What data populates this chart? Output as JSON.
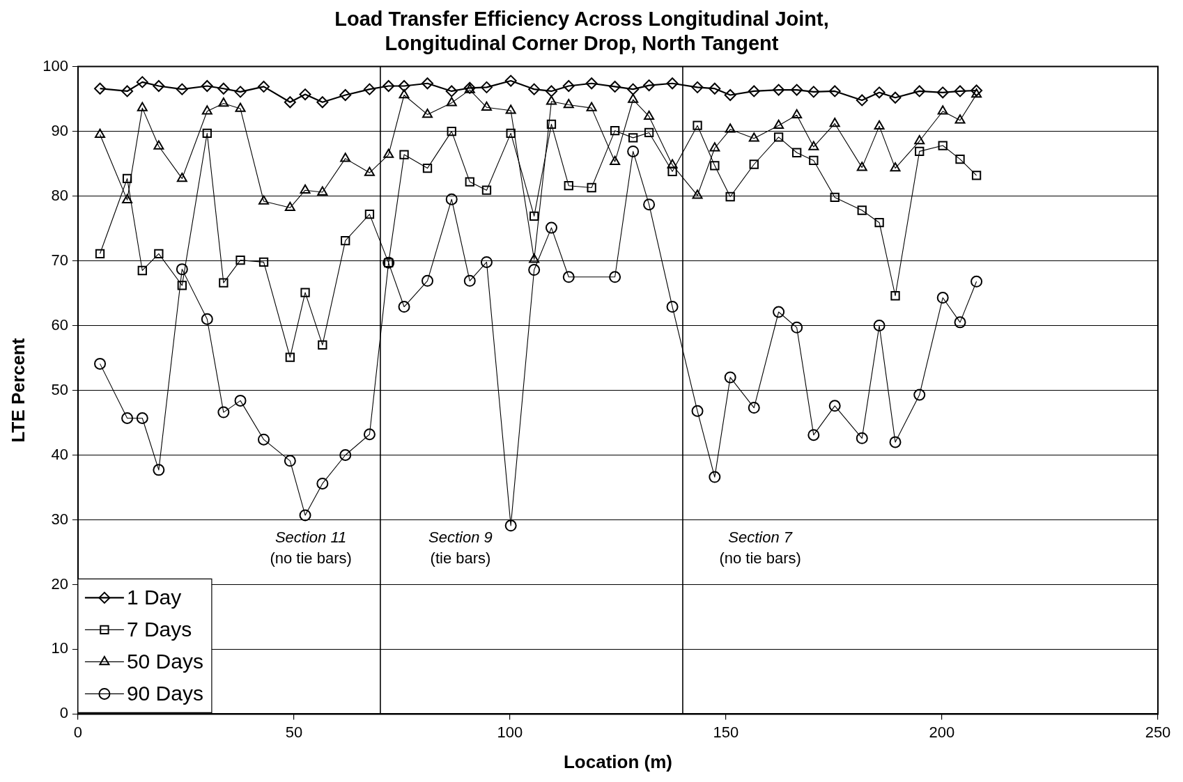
{
  "chart_data": {
    "type": "line",
    "title": "Load Transfer Efficiency Across Longitudinal Joint, Longitudinal Corner Drop, North Tangent",
    "xlabel": "Location (m)",
    "ylabel": "LTE Percent",
    "x": [
      5.1,
      11.4,
      14.9,
      18.7,
      24.1,
      29.9,
      33.7,
      37.6,
      43.0,
      49.1,
      52.6,
      56.6,
      61.9,
      67.5,
      71.9,
      75.5,
      80.9,
      86.5,
      90.7,
      94.6,
      100.2,
      105.6,
      109.6,
      113.6,
      118.9,
      124.3,
      128.5,
      132.2,
      137.6,
      143.4,
      147.4,
      151.0,
      156.5,
      162.2,
      166.4,
      170.3,
      175.2,
      181.5,
      185.5,
      189.2,
      194.8,
      200.2,
      204.2,
      208.0
    ],
    "series": [
      {
        "name": "1 Day",
        "color": "#000000",
        "marker": "diamond",
        "values": [
          96.6,
          96.2,
          97.6,
          97.0,
          96.5,
          97.0,
          96.6,
          96.1,
          96.9,
          94.5,
          95.7,
          94.5,
          95.6,
          96.5,
          97.0,
          97.0,
          97.4,
          96.2,
          96.7,
          96.8,
          97.8,
          96.5,
          96.2,
          97.0,
          97.4,
          96.9,
          96.5,
          97.1,
          97.4,
          96.8,
          96.6,
          95.6,
          96.2,
          96.4,
          96.4,
          96.1,
          96.2,
          94.8,
          96.0,
          95.2,
          96.2,
          96.0,
          96.2,
          96.3
        ]
      },
      {
        "name": "7 Days",
        "color": "#000000",
        "marker": "square",
        "values": [
          71.1,
          82.7,
          68.5,
          71.1,
          66.2,
          89.7,
          66.6,
          70.1,
          69.8,
          55.1,
          65.1,
          57.0,
          73.1,
          77.2,
          69.7,
          86.4,
          84.3,
          90.0,
          82.2,
          80.9,
          89.7,
          76.9,
          91.1,
          81.6,
          81.3,
          90.1,
          89.0,
          89.8,
          83.8,
          90.9,
          84.7,
          79.9,
          84.9,
          89.1,
          86.7,
          85.5,
          79.8,
          77.8,
          75.9,
          64.6,
          86.9,
          87.8,
          85.7,
          83.2
        ]
      },
      {
        "name": "50 Days",
        "color": "#000000",
        "marker": "triangle",
        "values": [
          89.5,
          79.4,
          93.6,
          87.7,
          82.7,
          93.1,
          94.3,
          93.5,
          79.2,
          78.2,
          80.9,
          80.6,
          85.8,
          83.6,
          86.4,
          95.6,
          92.6,
          94.4,
          96.4,
          93.7,
          93.2,
          70.2,
          94.6,
          94.1,
          93.6,
          85.3,
          94.9,
          92.3,
          84.8,
          80.1,
          87.4,
          90.3,
          88.9,
          90.9,
          92.5,
          87.6,
          91.2,
          84.4,
          90.8,
          84.3,
          88.5,
          93.1,
          91.7,
          95.7
        ]
      },
      {
        "name": "90 Days",
        "color": "#000000",
        "marker": "circle",
        "values": [
          54.1,
          45.7,
          45.7,
          37.7,
          68.7,
          61.0,
          46.6,
          48.4,
          42.4,
          39.1,
          30.7,
          35.6,
          40.0,
          43.2,
          69.7,
          62.9,
          66.9,
          79.5,
          66.9,
          69.8,
          29.1,
          68.6,
          75.1,
          67.5,
          null,
          67.5,
          86.9,
          78.7,
          62.9,
          46.8,
          36.6,
          52.0,
          47.3,
          62.1,
          59.7,
          43.1,
          47.6,
          42.6,
          60.0,
          42.0,
          49.3,
          64.3,
          60.5,
          66.8
        ]
      }
    ],
    "xlim": [
      0,
      250
    ],
    "xticks": [
      0,
      50,
      100,
      150,
      200,
      250
    ],
    "ylim": [
      0,
      100
    ],
    "yticks": [
      0,
      10,
      20,
      30,
      40,
      50,
      60,
      70,
      80,
      90,
      100
    ],
    "grid": "y",
    "legend": "bottom left",
    "line_style": "solid",
    "ref_lines": [
      {
        "axis": "x",
        "value": 70,
        "label": null
      },
      {
        "axis": "x",
        "value": 140,
        "label": null
      }
    ],
    "annotations": [
      "Section 11\n(no tie bars)",
      "Section 9\n(tie bars)",
      "Section 7\n(no tie bars)"
    ]
  }
}
